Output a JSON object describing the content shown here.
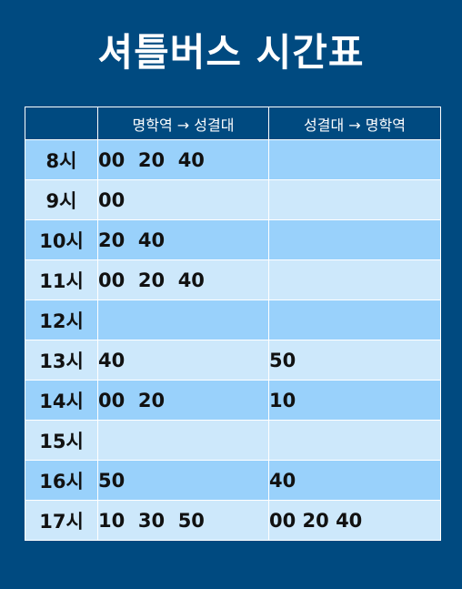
{
  "title": "셔틀버스 시간표",
  "headers": [
    "",
    "명학역 → 성결대",
    "성결대 → 명학역"
  ],
  "rows": [
    {
      "hour": "8시",
      "to_univ": "00  20  40",
      "to_station": ""
    },
    {
      "hour": "9시",
      "to_univ": "00",
      "to_station": ""
    },
    {
      "hour": "10시",
      "to_univ": "20  40",
      "to_station": ""
    },
    {
      "hour": "11시",
      "to_univ": "00  20  40",
      "to_station": ""
    },
    {
      "hour": "12시",
      "to_univ": "",
      "to_station": ""
    },
    {
      "hour": "13시",
      "to_univ": "40",
      "to_station": "50"
    },
    {
      "hour": "14시",
      "to_univ": "00  20",
      "to_station": "10"
    },
    {
      "hour": "15시",
      "to_univ": "",
      "to_station": ""
    },
    {
      "hour": "16시",
      "to_univ": "50",
      "to_station": "40"
    },
    {
      "hour": "17시",
      "to_univ": "10  30  50",
      "to_station": "00 20 40"
    }
  ],
  "colors": {
    "background": "#004a80",
    "row_dark": "#99d1fb",
    "row_light": "#cde8fb"
  }
}
